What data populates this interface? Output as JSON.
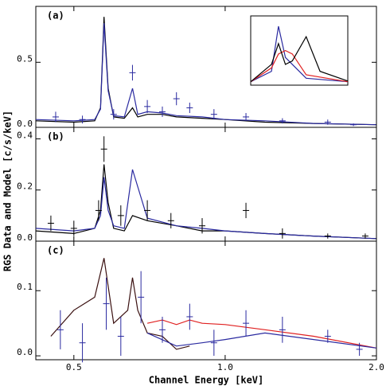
{
  "chart_data": [
    {
      "type": "line",
      "label": "(a)",
      "log_x": true,
      "xlim": [
        0.42,
        2.0
      ],
      "ylim": [
        0,
        0.93
      ],
      "yticks": [
        {
          "value": 0,
          "label": "0.0"
        },
        0.5
      ],
      "series": [
        {
          "color": "#000000",
          "x": [
            0.42,
            0.5,
            0.55,
            0.565,
            0.574,
            0.585,
            0.6,
            0.63,
            0.654,
            0.67,
            0.7,
            0.75,
            0.8,
            0.9,
            1.0,
            1.2,
            1.5,
            2.0
          ],
          "values": [
            0.05,
            0.04,
            0.05,
            0.15,
            0.85,
            0.3,
            0.08,
            0.07,
            0.15,
            0.08,
            0.1,
            0.1,
            0.08,
            0.07,
            0.06,
            0.04,
            0.03,
            0.02
          ]
        },
        {
          "color": "#2a2aa0",
          "x": [
            0.42,
            0.5,
            0.55,
            0.565,
            0.574,
            0.585,
            0.6,
            0.63,
            0.654,
            0.67,
            0.7,
            0.75,
            0.8,
            0.9,
            1.0,
            1.2,
            1.5,
            2.0
          ],
          "values": [
            0.06,
            0.05,
            0.06,
            0.14,
            0.8,
            0.28,
            0.09,
            0.08,
            0.3,
            0.1,
            0.12,
            0.11,
            0.09,
            0.08,
            0.06,
            0.05,
            0.03,
            0.02
          ]
        },
        {
          "color": "#2a2aa0",
          "marker": "cross",
          "x": [
            0.46,
            0.52,
            0.6,
            0.654,
            0.7,
            0.75,
            0.8,
            0.85,
            0.95,
            1.1,
            1.3,
            1.6,
            1.8
          ],
          "values": [
            0.08,
            0.06,
            0.1,
            0.42,
            0.16,
            0.12,
            0.22,
            0.15,
            0.1,
            0.08,
            0.05,
            0.04,
            0.02
          ],
          "errors": [
            0.04,
            0.03,
            0.04,
            0.06,
            0.05,
            0.04,
            0.05,
            0.04,
            0.04,
            0.03,
            0.02,
            0.02,
            0.01
          ]
        }
      ]
    },
    {
      "type": "line",
      "label": "(b)",
      "log_x": true,
      "xlim": [
        0.42,
        2.0
      ],
      "ylim": [
        0,
        0.445
      ],
      "yticks": [
        {
          "value": 0,
          "label": "0.0"
        },
        0.2,
        0.4
      ],
      "y_label": "RGS Data and Model [c/s/keV]",
      "series": [
        {
          "color": "#000000",
          "x": [
            0.42,
            0.5,
            0.55,
            0.565,
            0.574,
            0.585,
            0.6,
            0.63,
            0.654,
            0.7,
            0.8,
            0.9,
            1.0,
            1.2,
            1.5,
            2.0
          ],
          "values": [
            0.04,
            0.03,
            0.05,
            0.12,
            0.3,
            0.15,
            0.05,
            0.04,
            0.1,
            0.08,
            0.06,
            0.04,
            0.04,
            0.03,
            0.02,
            0.01
          ]
        },
        {
          "color": "#2a2aa0",
          "x": [
            0.42,
            0.5,
            0.55,
            0.565,
            0.574,
            0.585,
            0.6,
            0.63,
            0.654,
            0.7,
            0.8,
            0.9,
            1.0,
            1.2,
            1.5,
            2.0
          ],
          "values": [
            0.05,
            0.04,
            0.05,
            0.1,
            0.25,
            0.12,
            0.06,
            0.05,
            0.28,
            0.09,
            0.06,
            0.05,
            0.04,
            0.03,
            0.02,
            0.01
          ]
        },
        {
          "color": "#000000",
          "marker": "cross",
          "x": [
            0.45,
            0.5,
            0.56,
            0.574,
            0.62,
            0.7,
            0.78,
            0.9,
            1.1,
            1.3,
            1.6,
            1.9
          ],
          "values": [
            0.07,
            0.05,
            0.12,
            0.36,
            0.1,
            0.12,
            0.08,
            0.06,
            0.12,
            0.03,
            0.02,
            0.02
          ],
          "errors": [
            0.03,
            0.03,
            0.04,
            0.05,
            0.04,
            0.04,
            0.03,
            0.03,
            0.03,
            0.02,
            0.01,
            0.01
          ]
        }
      ]
    },
    {
      "type": "line",
      "label": "(c)",
      "log_x": true,
      "xlim": [
        0.42,
        2.0
      ],
      "ylim": [
        -0.006,
        0.176
      ],
      "yticks": [
        {
          "value": 0,
          "label": "0.0"
        },
        0.1
      ],
      "xticks": [
        0.5,
        {
          "value": 1,
          "label": "1.0"
        },
        {
          "value": 2,
          "label": "2.0"
        }
      ],
      "x_label": "Channel Energy [keV]",
      "series": [
        {
          "color": "#3a1010",
          "x": [
            0.45,
            0.5,
            0.55,
            0.574,
            0.6,
            0.64,
            0.654,
            0.67,
            0.7,
            0.75,
            0.8,
            0.85
          ],
          "values": [
            0.03,
            0.07,
            0.09,
            0.15,
            0.05,
            0.07,
            0.12,
            0.07,
            0.035,
            0.03,
            0.01,
            0.015
          ]
        },
        {
          "color": "#e02020",
          "x": [
            0.7,
            0.75,
            0.8,
            0.85,
            0.9,
            1.0,
            1.2,
            1.5,
            2.0
          ],
          "values": [
            0.05,
            0.055,
            0.048,
            0.055,
            0.05,
            0.048,
            0.04,
            0.03,
            0.012
          ]
        },
        {
          "color": "#2a2aa0",
          "x": [
            0.7,
            0.8,
            0.9,
            1.0,
            1.2,
            1.5,
            2.0
          ],
          "values": [
            0.035,
            0.015,
            0.02,
            0.025,
            0.035,
            0.025,
            0.012
          ]
        },
        {
          "color": "#2a2aa0",
          "marker": "cross",
          "x": [
            0.47,
            0.52,
            0.58,
            0.62,
            0.68,
            0.75,
            0.85,
            0.95,
            1.1,
            1.3,
            1.6,
            1.85
          ],
          "values": [
            0.04,
            0.02,
            0.08,
            0.03,
            0.09,
            0.04,
            0.06,
            0.02,
            0.05,
            0.04,
            0.03,
            0.01
          ],
          "errors": [
            0.03,
            0.03,
            0.04,
            0.03,
            0.04,
            0.02,
            0.02,
            0.02,
            0.02,
            0.02,
            0.01,
            0.01
          ]
        }
      ]
    },
    {
      "type": "line",
      "log_x": false,
      "xlim": [
        0.55,
        0.62
      ],
      "ylim": [
        0,
        1
      ],
      "series": [
        {
          "color": "#2a2aa0",
          "x": [
            0.55,
            0.565,
            0.57,
            0.575,
            0.58,
            0.59,
            0.62
          ],
          "values": [
            0.05,
            0.2,
            0.85,
            0.4,
            0.3,
            0.1,
            0.05
          ]
        },
        {
          "color": "#e02020",
          "x": [
            0.55,
            0.565,
            0.57,
            0.575,
            0.58,
            0.59,
            0.62
          ],
          "values": [
            0.05,
            0.25,
            0.45,
            0.5,
            0.45,
            0.15,
            0.05
          ]
        },
        {
          "color": "#000000",
          "x": [
            0.55,
            0.565,
            0.57,
            0.575,
            0.58,
            0.59,
            0.6,
            0.62
          ],
          "values": [
            0.05,
            0.3,
            0.6,
            0.3,
            0.35,
            0.7,
            0.2,
            0.06
          ]
        }
      ]
    }
  ]
}
